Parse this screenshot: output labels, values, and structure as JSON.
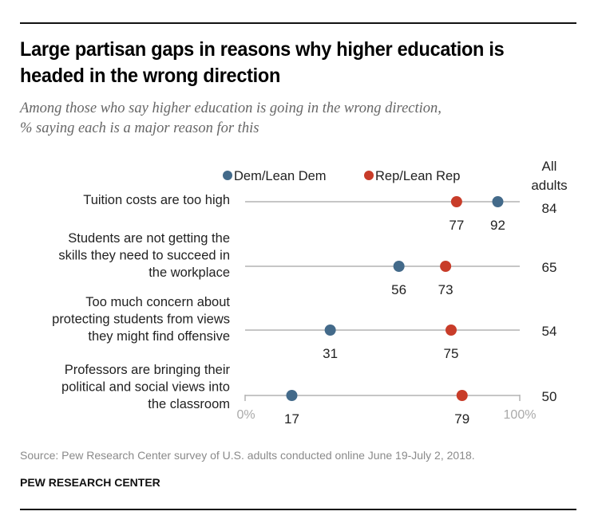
{
  "header": {
    "title": "Large partisan gaps in reasons why higher education is headed in the wrong direction",
    "subtitle_lines": [
      "Among those who say higher education is going in the wrong direction,",
      "% saying each is a major reason for this"
    ]
  },
  "footer": {
    "source": "Source: Pew Research Center survey of U.S. adults conducted online June 19-July 2, 2018.",
    "brand": "PEW RESEARCH CENTER"
  },
  "chart_data": {
    "type": "dot-plot",
    "title": "Large partisan gaps in reasons why higher education is headed in the wrong direction",
    "subtitle": "Among those who say higher education is going in the wrong direction, % saying each is a major reason for this",
    "xlim": [
      0,
      100
    ],
    "x_axis_labels": [
      "0%",
      "100%"
    ],
    "grid": false,
    "legend": {
      "placement": "top",
      "entries": [
        {
          "name": "Dem/Lean Dem",
          "color": "#436a8a"
        },
        {
          "name": "Rep/Lean Rep",
          "color": "#c83c29"
        }
      ]
    },
    "all_adults_header": [
      "All",
      "adults"
    ],
    "categories": [
      {
        "label_lines": [
          "Tuition costs are too high"
        ],
        "dem": 92,
        "rep": 77,
        "all": 84
      },
      {
        "label_lines": [
          "Students are not getting the",
          "skills they need to succeed in",
          "the workplace"
        ],
        "dem": 56,
        "rep": 73,
        "all": 65
      },
      {
        "label_lines": [
          "Too much concern about",
          "protecting students from views",
          "they might find offensive"
        ],
        "dem": 31,
        "rep": 75,
        "all": 54
      },
      {
        "label_lines": [
          "Professors are bringing their",
          "political and social views into",
          "the classroom"
        ],
        "dem": 17,
        "rep": 79,
        "all": 50
      }
    ],
    "colors": {
      "dem": "#436a8a",
      "rep": "#c83c29",
      "line": "#b3b3b3",
      "axis_text": "#aaaaaa"
    }
  }
}
